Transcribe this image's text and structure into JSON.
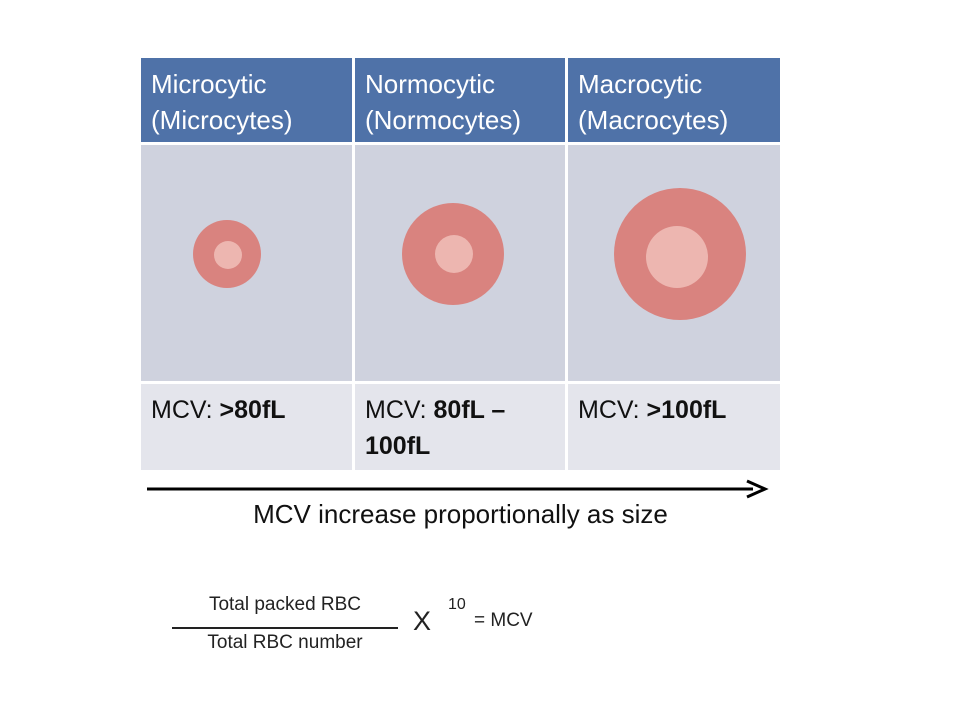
{
  "columns": [
    {
      "header_line1": "Microcytic",
      "header_line2": "(Microcytes)",
      "mcv_prefix": "MCV: ",
      "mcv_value": ">80fL"
    },
    {
      "header_line1": "Normocytic",
      "header_line2": "(Normocytes)",
      "mcv_prefix": "MCV: ",
      "mcv_value": "80fL –",
      "mcv_value2": "100fL"
    },
    {
      "header_line1": "Macrocytic",
      "header_line2": "(Macrocytes)",
      "mcv_prefix": "MCV: ",
      "mcv_value": ">100fL"
    }
  ],
  "caption": "MCV increase proportionally as size",
  "formula": {
    "numerator": "Total packed RBC",
    "denominator": "Total RBC number",
    "times": "X",
    "exponent": "10",
    "result": "= MCV"
  },
  "colors": {
    "header_bg": "#4F72A8",
    "image_bg": "#CFD2DE",
    "value_bg": "#E4E5EC",
    "cell_outer": "#D9837F",
    "cell_inner": "#EDB6B0"
  }
}
